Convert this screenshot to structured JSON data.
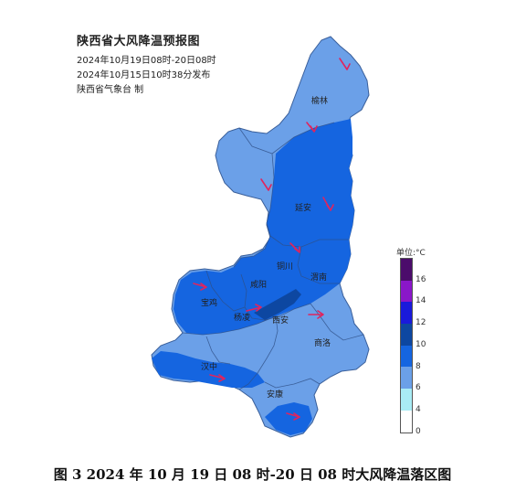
{
  "header": {
    "title": "陕西省大风降温预报图",
    "period": "2024年10月19日08时-20日08时",
    "issued": "2024年10月15日10时38分发布",
    "issuer": "陕西省气象台 制"
  },
  "legend": {
    "unit_label": "单位:°C",
    "ticks": [
      "16",
      "14",
      "12",
      "10",
      "8",
      "6",
      "4",
      "0"
    ],
    "colors": [
      "#4b0c6b",
      "#8a17c9",
      "#1a1adb",
      "#0d47a1",
      "#1565e0",
      "#6ba0e8",
      "#a9ecf5",
      "#ffffff"
    ]
  },
  "cities": {
    "yulin": "榆林",
    "yanan": "延安",
    "tongchuan": "铜川",
    "xianyang": "咸阳",
    "weinan": "渭南",
    "baoji": "宝鸡",
    "yangling": "杨凌",
    "xian": "西安",
    "shangluo": "商洛",
    "hanzhong": "汉中",
    "ankang": "安康"
  },
  "caption": "图 3 2024 年 10 月 19 日 08 时-20 日 08 时大风降温落区图",
  "colors": {
    "band_8": "#6ba0e8",
    "band_10": "#1565e0",
    "band_12": "#0d47a1",
    "wind_marker": "#e0245e"
  }
}
